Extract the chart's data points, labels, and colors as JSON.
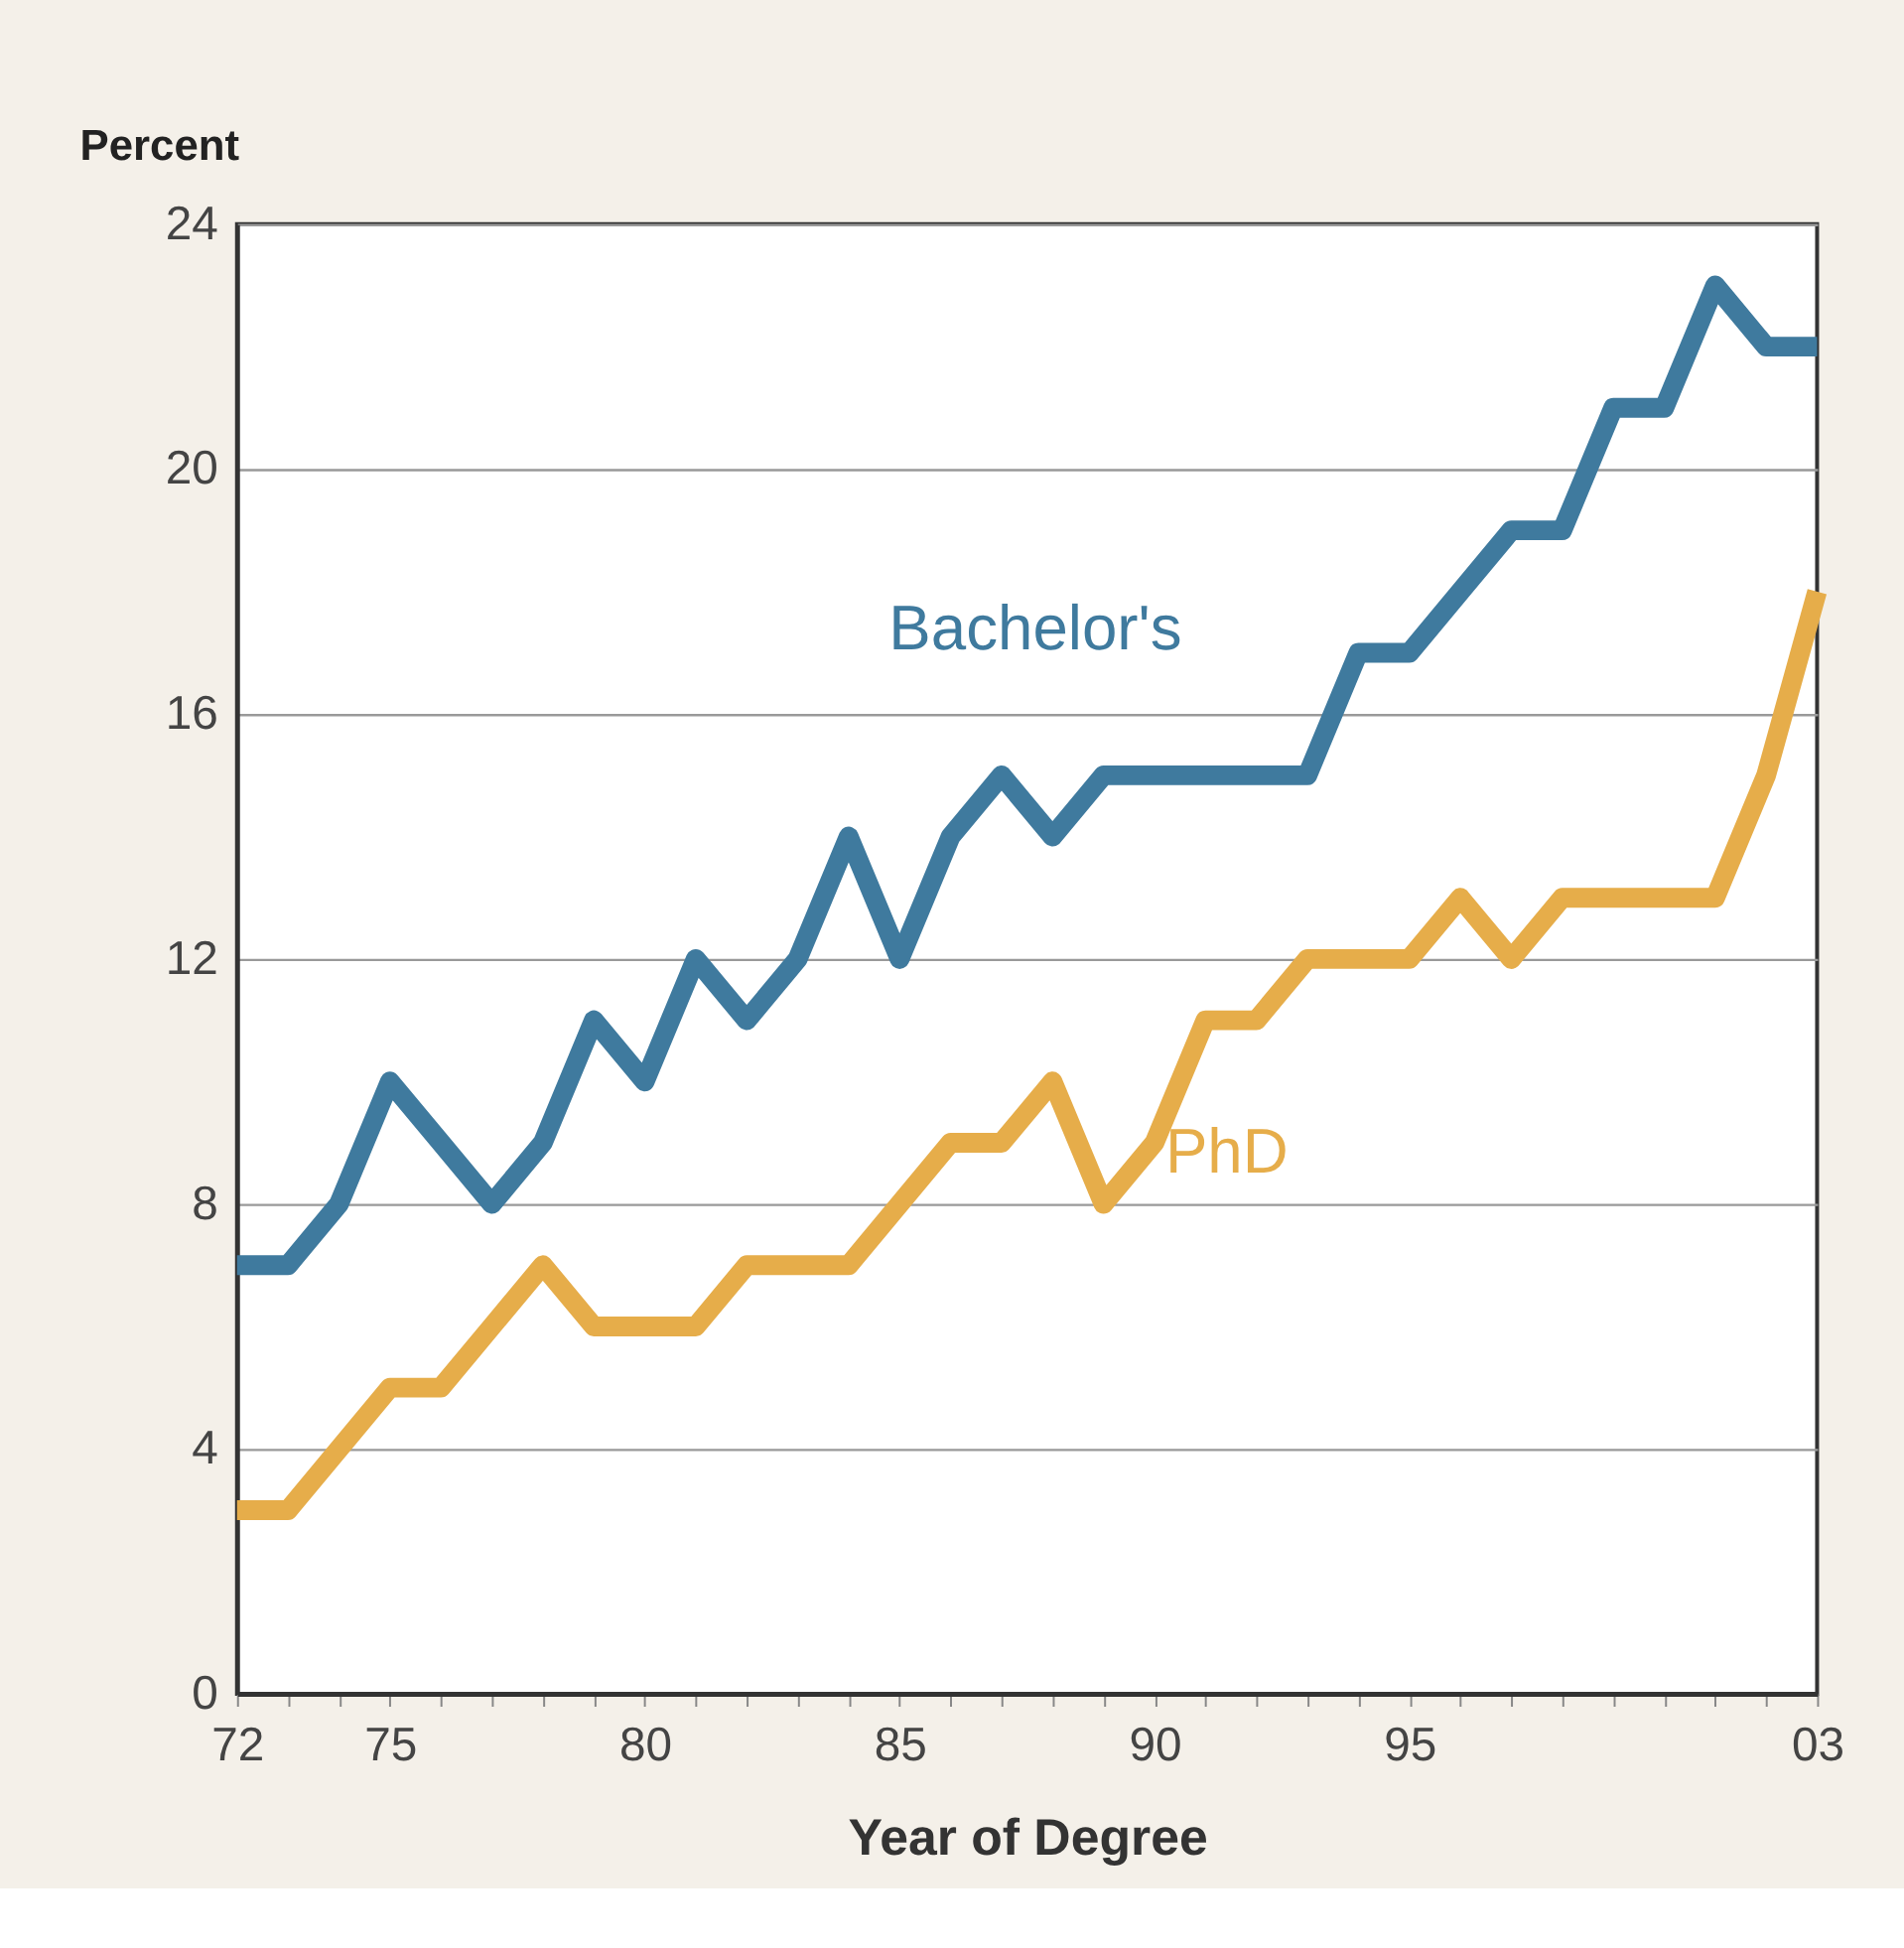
{
  "chart_data": {
    "type": "line",
    "ylabel": "Percent",
    "xlabel": "Year of Degree",
    "x": [
      1972,
      1973,
      1974,
      1975,
      1976,
      1977,
      1978,
      1979,
      1980,
      1981,
      1982,
      1983,
      1984,
      1985,
      1986,
      1987,
      1988,
      1989,
      1990,
      1991,
      1992,
      1993,
      1994,
      1995,
      1996,
      1997,
      1998,
      1999,
      2000,
      2001,
      2002,
      2003
    ],
    "series": [
      {
        "name": "Bachelor's",
        "color": "#3f7a9e",
        "values": [
          7,
          7,
          8,
          10,
          9,
          8,
          9,
          11,
          10,
          12,
          11,
          12,
          14,
          12,
          14,
          15,
          14,
          15,
          15,
          15,
          15,
          15,
          17,
          17,
          18,
          19,
          19,
          21,
          21,
          23,
          22,
          22
        ]
      },
      {
        "name": "PhD",
        "color": "#e6ad4a",
        "values": [
          3,
          3,
          4,
          5,
          5,
          6,
          7,
          6,
          6,
          6,
          7,
          7,
          7,
          8,
          9,
          9,
          10,
          8,
          9,
          11,
          11,
          12,
          12,
          12,
          13,
          12,
          13,
          13,
          13,
          13,
          15,
          18
        ]
      }
    ],
    "xlim": [
      1972,
      2003
    ],
    "ylim": [
      0,
      24
    ],
    "yticks": [
      0,
      4,
      8,
      12,
      16,
      20,
      24
    ],
    "xticks": [
      {
        "value": 1972,
        "label": "72"
      },
      {
        "value": 1973,
        "label": null
      },
      {
        "value": 1974,
        "label": null
      },
      {
        "value": 1975,
        "label": "75"
      },
      {
        "value": 1976,
        "label": null
      },
      {
        "value": 1977,
        "label": null
      },
      {
        "value": 1978,
        "label": null
      },
      {
        "value": 1979,
        "label": null
      },
      {
        "value": 1980,
        "label": "80"
      },
      {
        "value": 1981,
        "label": null
      },
      {
        "value": 1982,
        "label": null
      },
      {
        "value": 1983,
        "label": null
      },
      {
        "value": 1984,
        "label": null
      },
      {
        "value": 1985,
        "label": "85"
      },
      {
        "value": 1986,
        "label": null
      },
      {
        "value": 1987,
        "label": null
      },
      {
        "value": 1988,
        "label": null
      },
      {
        "value": 1989,
        "label": null
      },
      {
        "value": 1990,
        "label": "90"
      },
      {
        "value": 1991,
        "label": null
      },
      {
        "value": 1992,
        "label": null
      },
      {
        "value": 1993,
        "label": null
      },
      {
        "value": 1994,
        "label": null
      },
      {
        "value": 1995,
        "label": "95"
      },
      {
        "value": 1996,
        "label": null
      },
      {
        "value": 1997,
        "label": null
      },
      {
        "value": 1998,
        "label": null
      },
      {
        "value": 1999,
        "label": null
      },
      {
        "value": 2000,
        "label": null
      },
      {
        "value": 2001,
        "label": null
      },
      {
        "value": 2002,
        "label": null
      },
      {
        "value": 2003,
        "label": "03"
      }
    ],
    "grid": "y",
    "legend": false,
    "marker": "none",
    "line_style": "solid"
  }
}
